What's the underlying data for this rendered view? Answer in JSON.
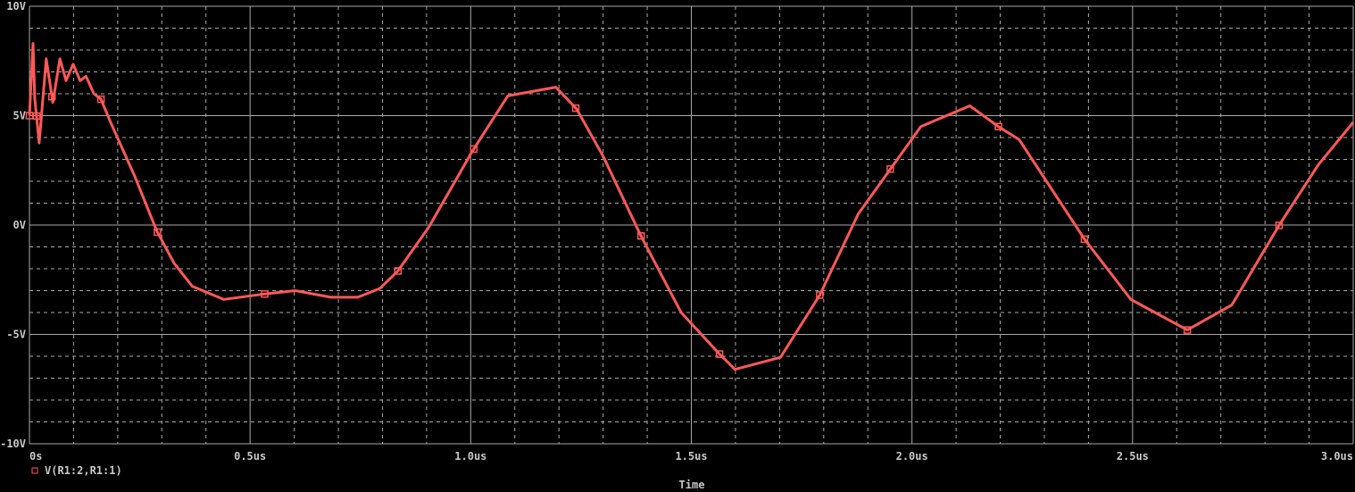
{
  "chart_data": {
    "type": "line",
    "xlabel": "Time",
    "ylabel": "",
    "xlim": [
      0,
      3.0
    ],
    "ylim": [
      -10,
      10
    ],
    "x_unit": "us",
    "x_ticks": [
      0,
      0.5,
      1.0,
      1.5,
      2.0,
      2.5,
      3.0
    ],
    "x_tick_labels": [
      "0s",
      "0.5us",
      "1.0us",
      "1.5us",
      "2.0us",
      "2.5us",
      "3.0us"
    ],
    "y_ticks": [
      10,
      5,
      0,
      -5,
      -10
    ],
    "y_tick_labels": [
      "10V",
      "5V",
      "0V",
      "-5V",
      "-10V"
    ],
    "grid": true,
    "legend_placement": "bottom-left",
    "colors": {
      "background": "#000000",
      "grid": "#a8a8a8",
      "trace": "#ff5858",
      "text": "#c8c8c8"
    },
    "series": [
      {
        "name": "V(R1:2,R1:1)",
        "marker": "square",
        "x": [
          0,
          0.008,
          0.012,
          0.022,
          0.038,
          0.053,
          0.069,
          0.083,
          0.099,
          0.115,
          0.128,
          0.146,
          0.162,
          0.186,
          0.237,
          0.288,
          0.328,
          0.369,
          0.44,
          0.533,
          0.602,
          0.683,
          0.744,
          0.794,
          0.835,
          0.905,
          1.003,
          1.084,
          1.193,
          1.24,
          1.3,
          1.386,
          1.477,
          1.564,
          1.599,
          1.702,
          1.791,
          1.878,
          1.949,
          2.02,
          2.131,
          2.196,
          2.243,
          2.391,
          2.496,
          2.624,
          2.725,
          2.834,
          2.921,
          3.0
        ],
        "y": [
          5.0,
          8.3,
          5.8,
          3.75,
          7.6,
          5.6,
          7.6,
          6.6,
          7.35,
          6.6,
          6.8,
          6.0,
          5.75,
          4.6,
          2.3,
          -0.25,
          -1.75,
          -2.8,
          -3.4,
          -3.15,
          -3.0,
          -3.3,
          -3.3,
          -2.9,
          -2.1,
          -0.1,
          3.35,
          5.9,
          6.3,
          5.3,
          3.15,
          -0.5,
          -4.0,
          -5.9,
          -6.6,
          -6.05,
          -3.2,
          0.5,
          2.5,
          4.5,
          5.45,
          4.5,
          3.9,
          -0.65,
          -3.4,
          -4.8,
          -3.65,
          0.05,
          2.75,
          4.7
        ],
        "marker_x": [
          0,
          0.016,
          0.051,
          0.162,
          0.29,
          0.533,
          0.835,
          1.007,
          1.238,
          1.386,
          1.564,
          1.791,
          1.951,
          2.196,
          2.391,
          2.624,
          2.832
        ]
      }
    ]
  }
}
